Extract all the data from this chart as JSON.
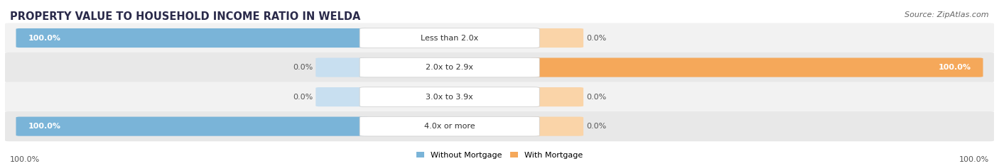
{
  "title": "PROPERTY VALUE TO HOUSEHOLD INCOME RATIO IN WELDA",
  "source": "Source: ZipAtlas.com",
  "categories": [
    "Less than 2.0x",
    "2.0x to 2.9x",
    "3.0x to 3.9x",
    "4.0x or more"
  ],
  "without_mortgage": [
    100.0,
    0.0,
    0.0,
    100.0
  ],
  "with_mortgage": [
    0.0,
    100.0,
    0.0,
    0.0
  ],
  "color_without": "#7ab4d8",
  "color_with": "#f5a85a",
  "color_without_zero": "#c8dff0",
  "color_with_zero": "#fad4a8",
  "row_bg_even": "#f2f2f2",
  "row_bg_odd": "#e8e8e8",
  "legend_without": "Without Mortgage",
  "legend_with": "With Mortgage",
  "title_fontsize": 10.5,
  "source_fontsize": 8,
  "bar_label_fontsize": 8,
  "cat_label_fontsize": 8
}
